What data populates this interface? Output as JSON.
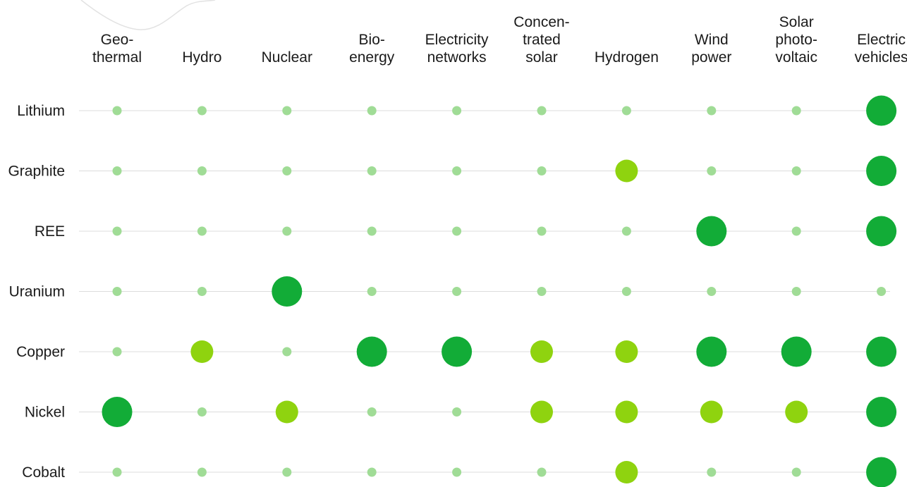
{
  "chart_data": {
    "type": "dot-matrix",
    "title": "",
    "columns": [
      {
        "key": "geothermal",
        "lines": [
          "Geo-",
          "thermal"
        ]
      },
      {
        "key": "hydro",
        "lines": [
          "Hydro"
        ]
      },
      {
        "key": "nuclear",
        "lines": [
          "Nuclear"
        ]
      },
      {
        "key": "bioenergy",
        "lines": [
          "Bio-",
          "energy"
        ]
      },
      {
        "key": "electricity-networks",
        "lines": [
          "Electricity",
          "networks"
        ]
      },
      {
        "key": "concentrated-solar",
        "lines": [
          "Concen-",
          "trated",
          "solar"
        ]
      },
      {
        "key": "hydrogen",
        "lines": [
          "Hydrogen"
        ]
      },
      {
        "key": "wind-power",
        "lines": [
          "Wind",
          "power"
        ]
      },
      {
        "key": "solar-photovoltaic",
        "lines": [
          "Solar",
          "photo-",
          "voltaic"
        ]
      },
      {
        "key": "electric-vehicles",
        "lines": [
          "Electric",
          "vehicles"
        ]
      }
    ],
    "rows": [
      "Lithium",
      "Graphite",
      "REE",
      "Uranium",
      "Copper",
      "Nickel",
      "Cobalt"
    ],
    "levels": {
      "0": {
        "color": "#a0dc96"
      },
      "1": {
        "color": "#8fd30f"
      },
      "2": {
        "color": "#12ac37"
      }
    },
    "values": [
      [
        0,
        0,
        0,
        0,
        0,
        0,
        0,
        0,
        0,
        2
      ],
      [
        0,
        0,
        0,
        0,
        0,
        0,
        1,
        0,
        0,
        2
      ],
      [
        0,
        0,
        0,
        0,
        0,
        0,
        0,
        2,
        0,
        2
      ],
      [
        0,
        0,
        2,
        0,
        0,
        0,
        0,
        0,
        0,
        0
      ],
      [
        0,
        1,
        0,
        2,
        2,
        1,
        1,
        2,
        2,
        2
      ],
      [
        2,
        0,
        1,
        0,
        0,
        1,
        1,
        1,
        1,
        2
      ],
      [
        0,
        0,
        0,
        0,
        0,
        0,
        1,
        0,
        0,
        2
      ]
    ]
  }
}
